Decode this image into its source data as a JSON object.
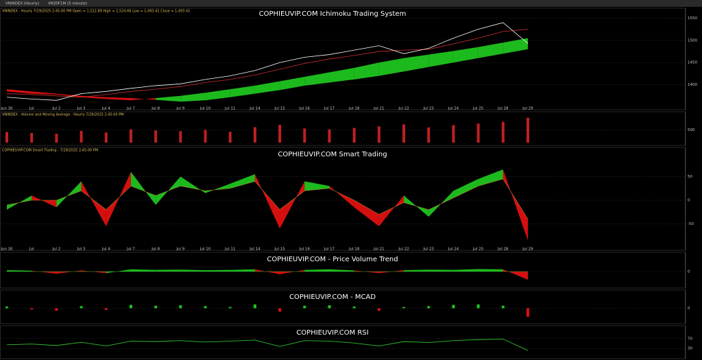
{
  "window": {
    "title": "VNINDEX (Hourly)",
    "tab": "VN30F1M (5 minute)"
  },
  "x_labels": [
    "Jun 30",
    "Jul",
    "Jul 2",
    "Jul 3",
    "Jul 4",
    "Jul 7",
    "Jul 8",
    "Jul 9",
    "Jul 10",
    "Jul 11",
    "Jul 14",
    "Jul 15",
    "Jul 16",
    "Jul 17",
    "Jul 18",
    "Jul 21",
    "Jul 22",
    "Jul 23",
    "Jul 24",
    "Jul 25",
    "Jul 28",
    "Jul 29"
  ],
  "panels": [
    {
      "type": "ichimoku",
      "title": "COPHIEUVIP.COM Ichimoku Trading System",
      "header": "VNINDEX - Hourly 7/29/2025 2:45:00 PM  Open = 1,522.89  High = 1,524.66  Low = 1,493.41  Close = 1,493.41",
      "ylim": [
        1350,
        1560
      ],
      "yticks": [
        1400,
        1450,
        1500,
        1550
      ],
      "close": [
        1372,
        1368,
        1365,
        1380,
        1385,
        1392,
        1398,
        1402,
        1412,
        1420,
        1432,
        1450,
        1462,
        1468,
        1478,
        1488,
        1470,
        1482,
        1505,
        1525,
        1540,
        1493
      ],
      "kijun": [
        1380,
        1378,
        1375,
        1372,
        1378,
        1385,
        1390,
        1396,
        1405,
        1412,
        1422,
        1435,
        1448,
        1458,
        1466,
        1475,
        1478,
        1480,
        1492,
        1505,
        1520,
        1525
      ],
      "span_a": [
        1385,
        1380,
        1378,
        1372,
        1368,
        1365,
        1370,
        1375,
        1382,
        1390,
        1398,
        1408,
        1418,
        1428,
        1438,
        1450,
        1460,
        1468,
        1476,
        1485,
        1495,
        1505
      ],
      "span_b": [
        1390,
        1385,
        1380,
        1375,
        1372,
        1370,
        1366,
        1362,
        1365,
        1372,
        1380,
        1388,
        1398,
        1405,
        1412,
        1420,
        1430,
        1440,
        1450,
        1460,
        1470,
        1480
      ],
      "colors": {
        "close": "#ffffff",
        "kijun": "#d03030",
        "up": "#1fc41f",
        "down": "#e01010"
      }
    },
    {
      "type": "volume",
      "header": "VNINDEX - Volume and Moving Average - Hourly 7/29/2025 2:45:00 PM",
      "ylim": [
        0,
        1000
      ],
      "yticks": [
        500
      ],
      "values": [
        420,
        380,
        350,
        460,
        400,
        520,
        480,
        450,
        500,
        430,
        610,
        700,
        560,
        520,
        580,
        640,
        720,
        600,
        690,
        750,
        820,
        980
      ],
      "colors": {
        "bar": "#c02020"
      }
    },
    {
      "type": "oscillator",
      "title": "COPHIEUVIP.COM Smart Trading",
      "header": "COPHIEUVIP.COM Smart Trading - 7/29/2025 2:45:00 PM",
      "ylim": [
        -100,
        100
      ],
      "yticks": [
        -50,
        0,
        50
      ],
      "fast": [
        -20,
        10,
        -15,
        40,
        -55,
        60,
        -10,
        50,
        15,
        35,
        55,
        -60,
        40,
        30,
        -15,
        -55,
        10,
        -35,
        20,
        45,
        65,
        -85
      ],
      "slow": [
        -10,
        0,
        0,
        20,
        -20,
        30,
        10,
        30,
        20,
        25,
        40,
        -20,
        20,
        25,
        0,
        -30,
        -5,
        -20,
        5,
        30,
        45,
        -40
      ],
      "colors": {
        "up": "#1fc41f",
        "down": "#e01010",
        "line": "#b08030"
      }
    },
    {
      "type": "oscillator",
      "title": "COPHIEUVIP.COM - Price Volume Trend",
      "ylim": [
        -50,
        50
      ],
      "yticks": [
        0
      ],
      "fast": [
        5,
        3,
        -8,
        4,
        -6,
        8,
        6,
        7,
        5,
        6,
        8,
        -10,
        6,
        8,
        4,
        -6,
        5,
        7,
        6,
        9,
        8,
        -30
      ],
      "slow": [
        0,
        0,
        0,
        0,
        0,
        0,
        0,
        0,
        0,
        0,
        0,
        0,
        0,
        0,
        0,
        0,
        0,
        0,
        0,
        0,
        0,
        0
      ],
      "colors": {
        "up": "#1fc41f",
        "down": "#e01010",
        "line": "#30a030"
      }
    },
    {
      "type": "histogram",
      "title": "COPHIEUVIP.COM - MCAD",
      "ylim": [
        -30,
        30
      ],
      "yticks": [
        0
      ],
      "values": [
        4,
        -3,
        -6,
        5,
        -4,
        8,
        6,
        7,
        5,
        3,
        9,
        -8,
        6,
        7,
        4,
        -6,
        3,
        5,
        8,
        9,
        6,
        -20
      ],
      "colors": {
        "up": "#1fc41f",
        "down": "#e01010"
      }
    },
    {
      "type": "line",
      "title": "COPHIEUVIP.COM RSI",
      "ylim": [
        0,
        100
      ],
      "yticks": [
        30,
        70
      ],
      "values": [
        45,
        48,
        42,
        55,
        40,
        60,
        58,
        62,
        56,
        60,
        64,
        38,
        62,
        60,
        52,
        40,
        58,
        54,
        62,
        66,
        68,
        22
      ],
      "colors": {
        "line": "#30c030"
      }
    }
  ]
}
